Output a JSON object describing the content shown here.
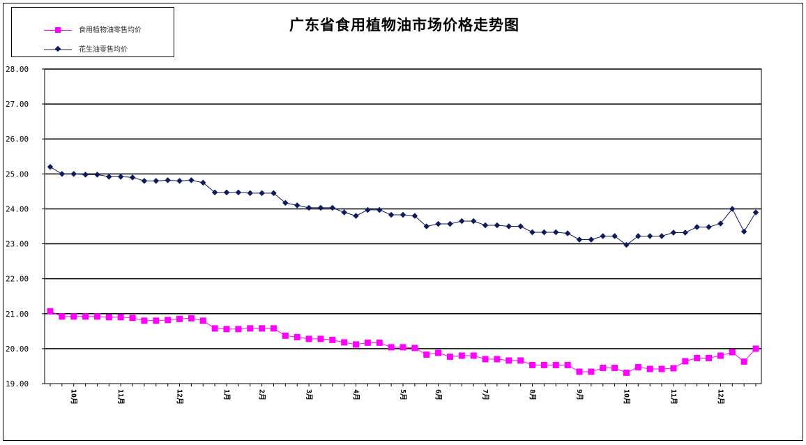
{
  "chart_data": {
    "type": "line",
    "title": "广东省食用植物油市场价格走势图",
    "ylim": [
      19,
      28
    ],
    "yticks": [
      "19.00",
      "20.00",
      "21.00",
      "22.00",
      "23.00",
      "24.00",
      "25.00",
      "26.00",
      "27.00",
      "28.00"
    ],
    "grid": true,
    "legend_position": "top-left",
    "month_labels": [
      {
        "label": "10月",
        "index": 2
      },
      {
        "label": "11月",
        "index": 6
      },
      {
        "label": "12月",
        "index": 11
      },
      {
        "label": "1月",
        "index": 15
      },
      {
        "label": "2月",
        "index": 18
      },
      {
        "label": "3月",
        "index": 22
      },
      {
        "label": "4月",
        "index": 26
      },
      {
        "label": "5月",
        "index": 30
      },
      {
        "label": "6月",
        "index": 33
      },
      {
        "label": "7月",
        "index": 37
      },
      {
        "label": "8月",
        "index": 41
      },
      {
        "label": "9月",
        "index": 45
      },
      {
        "label": "10月",
        "index": 49
      },
      {
        "label": "11月",
        "index": 53
      },
      {
        "label": "12月",
        "index": 57
      }
    ],
    "series": [
      {
        "name": "食用植物油零售均价",
        "color": "#ff00ff",
        "marker": "square",
        "values": [
          21.07,
          20.92,
          20.92,
          20.92,
          20.92,
          20.9,
          20.9,
          20.88,
          20.8,
          20.8,
          20.82,
          20.85,
          20.87,
          20.8,
          20.58,
          20.56,
          20.56,
          20.58,
          20.58,
          20.58,
          20.37,
          20.33,
          20.28,
          20.28,
          20.25,
          20.18,
          20.12,
          20.17,
          20.17,
          20.04,
          20.04,
          20.02,
          19.83,
          19.88,
          19.77,
          19.8,
          19.8,
          19.7,
          19.7,
          19.66,
          19.66,
          19.53,
          19.53,
          19.53,
          19.53,
          19.34,
          19.34,
          19.45,
          19.45,
          19.31,
          19.47,
          19.42,
          19.42,
          19.44,
          19.64,
          19.73,
          19.73,
          19.8,
          19.9,
          19.63,
          20.0
        ]
      },
      {
        "name": "花生油零售均价",
        "color": "#0d1a5c",
        "marker": "diamond",
        "values": [
          25.2,
          25.0,
          25.0,
          24.98,
          24.98,
          24.92,
          24.92,
          24.9,
          24.8,
          24.8,
          24.82,
          24.8,
          24.82,
          24.75,
          24.47,
          24.47,
          24.47,
          24.45,
          24.45,
          24.45,
          24.17,
          24.1,
          24.03,
          24.03,
          24.03,
          23.9,
          23.8,
          23.97,
          23.97,
          23.83,
          23.83,
          23.8,
          23.5,
          23.57,
          23.57,
          23.65,
          23.65,
          23.53,
          23.53,
          23.5,
          23.5,
          23.33,
          23.33,
          23.33,
          23.3,
          23.12,
          23.12,
          23.22,
          23.22,
          22.97,
          23.22,
          23.22,
          23.22,
          23.32,
          23.32,
          23.48,
          23.48,
          23.58,
          24.0,
          23.35,
          23.9
        ]
      }
    ]
  }
}
